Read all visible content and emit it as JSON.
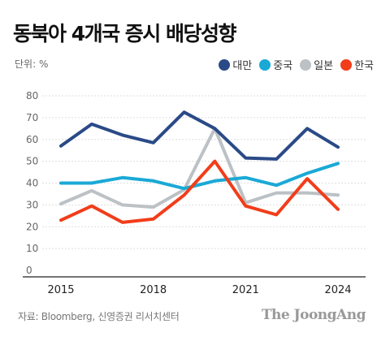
{
  "chart_data": {
    "type": "line",
    "title": "동북아 4개국 증시 배당성향",
    "unit_label": "단위: %",
    "ylim": [
      0,
      80
    ],
    "y_ticks": [
      "0",
      "10",
      "20",
      "30",
      "40",
      "50",
      "60",
      "70",
      "80"
    ],
    "x": [
      2015,
      2016,
      2017,
      2018,
      2019,
      2020,
      2021,
      2022,
      2023,
      2024
    ],
    "x_tick_labels": [
      "2015",
      "2018",
      "2021",
      "2024"
    ],
    "grid": true,
    "legend_position": "top-right",
    "series": [
      {
        "name": "대만",
        "color": "#2a4a87",
        "values": [
          57,
          67,
          62,
          58.5,
          72.5,
          65,
          51.5,
          51,
          65,
          56.5
        ]
      },
      {
        "name": "중국",
        "color": "#1aa9d6",
        "values": [
          40,
          40,
          42.5,
          41,
          37.5,
          41,
          42.5,
          39,
          44.5,
          49
        ]
      },
      {
        "name": "일본",
        "color": "#bcc1c5",
        "values": [
          30.5,
          36.5,
          30,
          29,
          37,
          65,
          31,
          35.5,
          35.5,
          34.5
        ]
      },
      {
        "name": "한국",
        "color": "#f13d1a",
        "values": [
          23,
          29.5,
          22,
          23.5,
          34.5,
          50,
          29.5,
          25.5,
          42,
          28
        ]
      }
    ],
    "source": "자료: Bloomberg, 신영증권 리서치센터",
    "brand": "The JoongAng"
  }
}
